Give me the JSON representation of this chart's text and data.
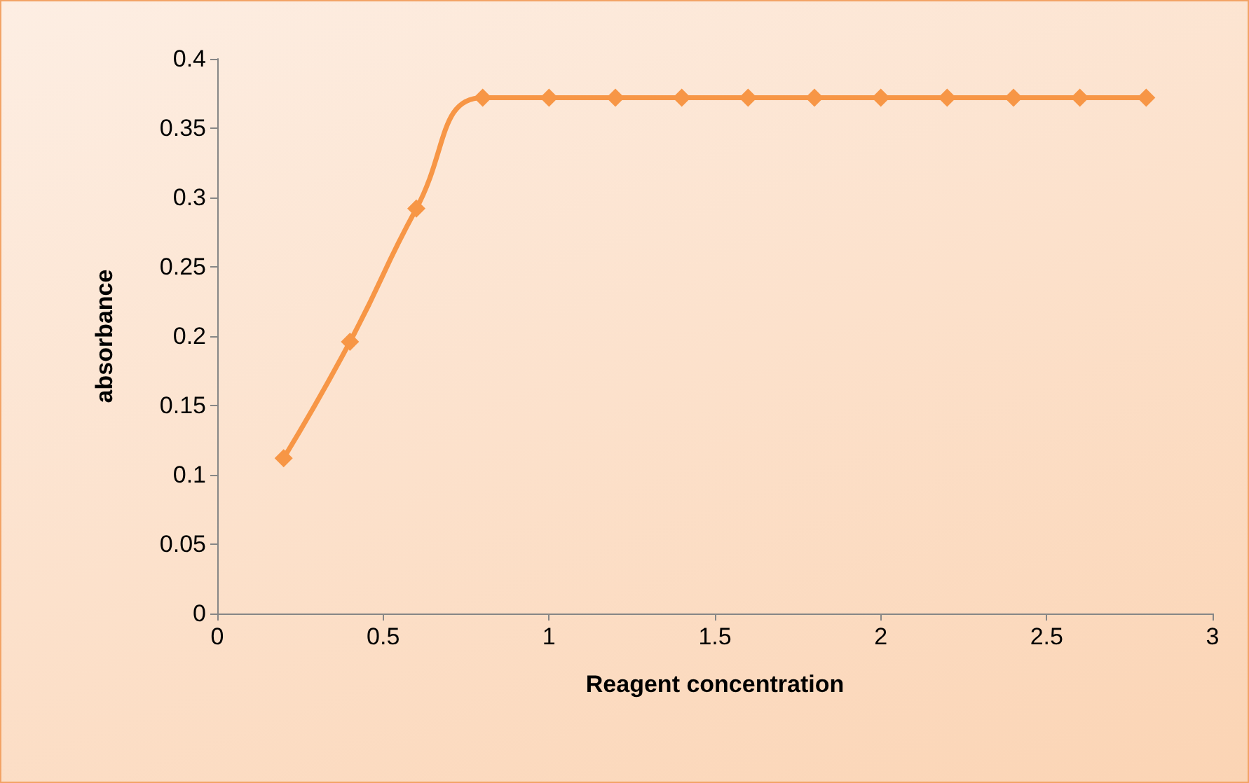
{
  "chart_data": {
    "type": "line",
    "xlabel": "Reagent concentration",
    "ylabel": "absorbance",
    "x": [
      0.2,
      0.4,
      0.6,
      0.8,
      1.0,
      1.2,
      1.4,
      1.6,
      1.8,
      2.0,
      2.2,
      2.4,
      2.6,
      2.8
    ],
    "series": [
      {
        "color": "#f79646",
        "values": [
          0.112,
          0.196,
          0.292,
          0.372,
          0.372,
          0.372,
          0.372,
          0.372,
          0.372,
          0.372,
          0.372,
          0.372,
          0.372,
          0.372
        ]
      }
    ],
    "xlim": [
      0,
      3
    ],
    "xticks": [
      0,
      0.5,
      1,
      1.5,
      2,
      2.5,
      3
    ],
    "ylim": [
      0,
      0.4
    ],
    "yticks": [
      0,
      0.05,
      0.1,
      0.15,
      0.2,
      0.25,
      0.3,
      0.35,
      0.4
    ],
    "grid": false,
    "marker": "diamond",
    "line_style": "solid"
  }
}
